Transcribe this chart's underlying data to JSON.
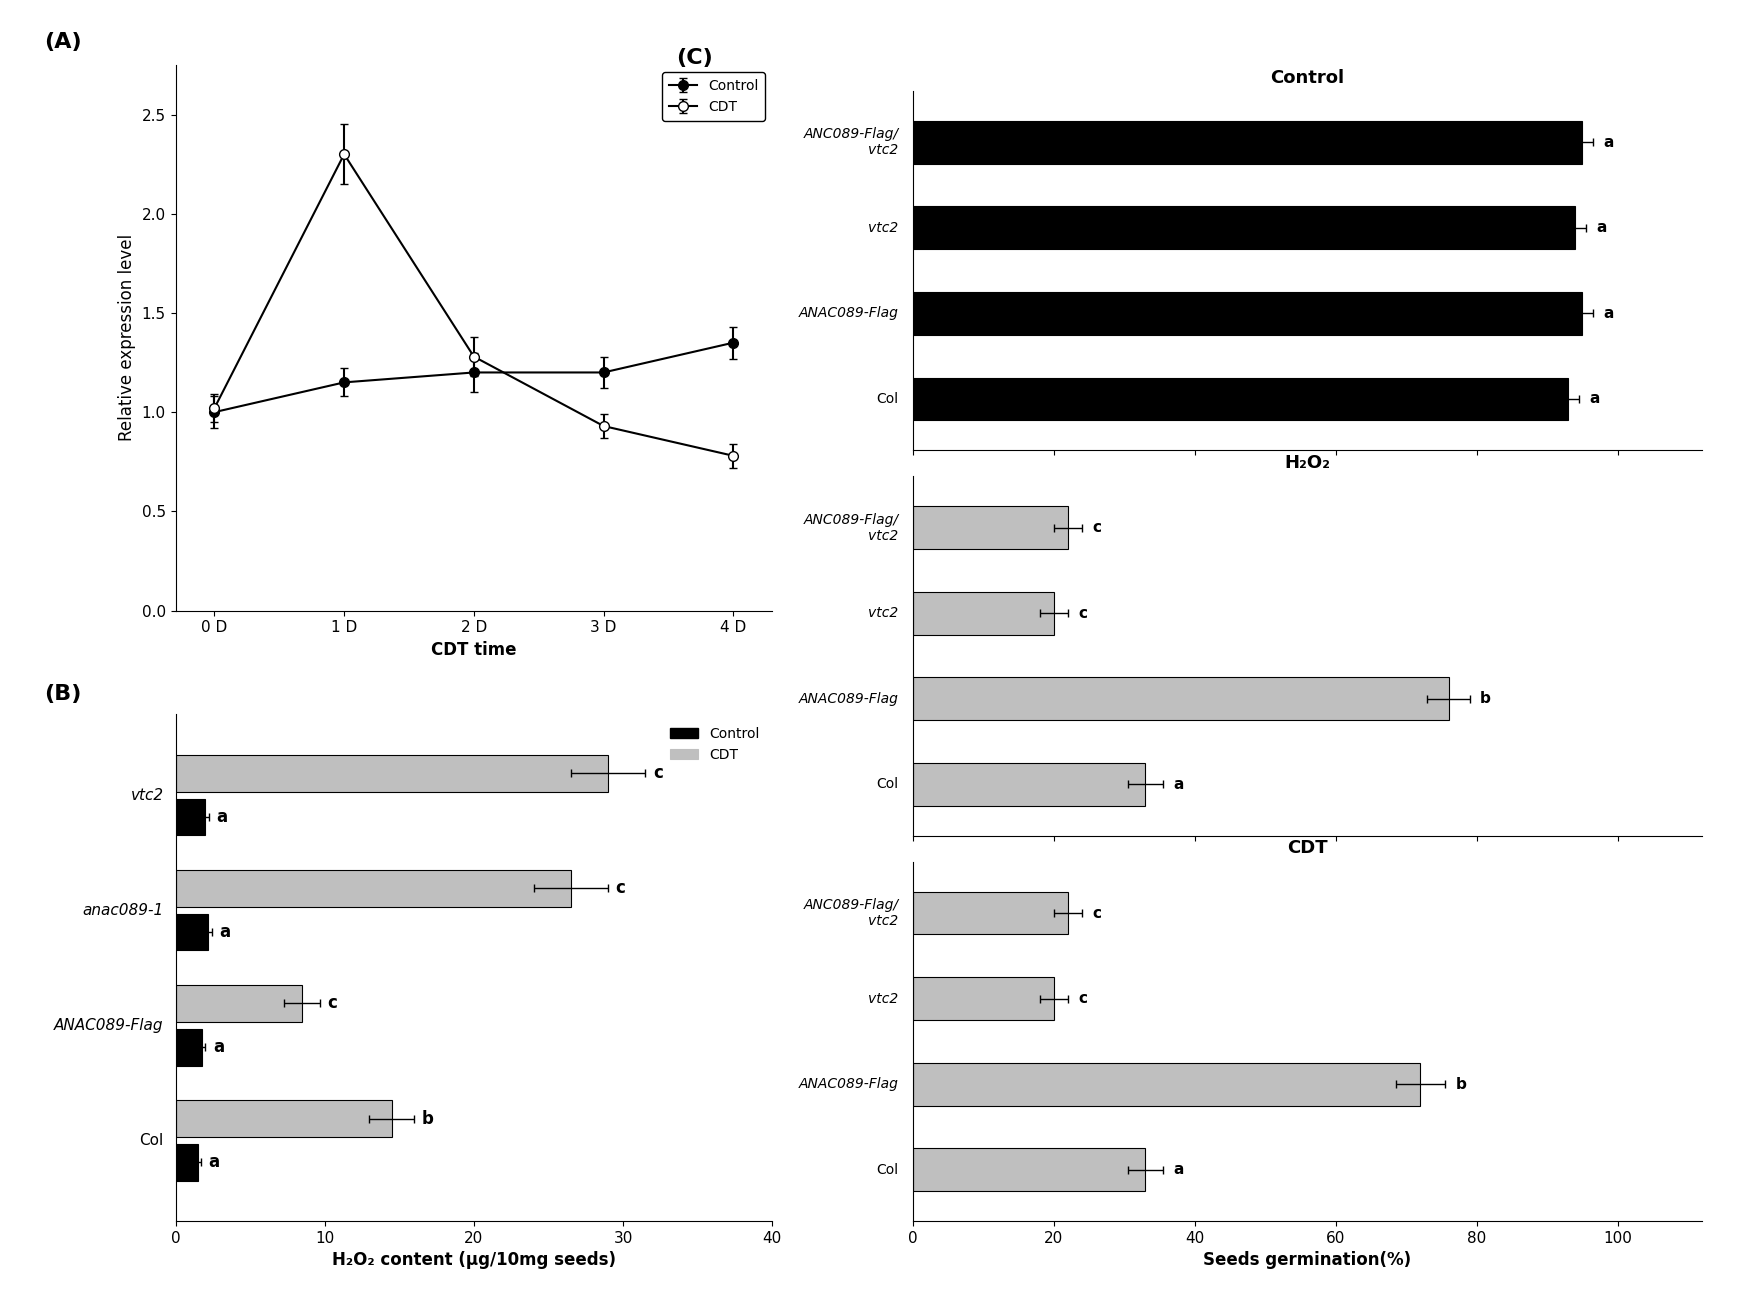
{
  "panel_A": {
    "x": [
      0,
      1,
      2,
      3,
      4
    ],
    "x_labels": [
      "0 D",
      "1 D",
      "2 D",
      "3 D",
      "4 D"
    ],
    "control_y": [
      1.0,
      1.15,
      1.2,
      1.2,
      1.35
    ],
    "control_err": [
      0.08,
      0.07,
      0.1,
      0.08,
      0.08
    ],
    "cdt_y": [
      1.02,
      2.3,
      1.28,
      0.93,
      0.78
    ],
    "cdt_err": [
      0.07,
      0.15,
      0.1,
      0.06,
      0.06
    ],
    "ylabel": "Relative expression level",
    "xlabel": "CDT time",
    "ylim": [
      0.0,
      2.75
    ],
    "yticks": [
      0.0,
      0.5,
      1.0,
      1.5,
      2.0,
      2.5
    ],
    "legend_control": "Control",
    "legend_cdt": "CDT"
  },
  "panel_B": {
    "categories": [
      "vtc2",
      "anac089-1",
      "ANAC089-Flag",
      "Col"
    ],
    "control_vals": [
      2.0,
      2.2,
      1.8,
      1.5
    ],
    "control_err": [
      0.25,
      0.25,
      0.2,
      0.2
    ],
    "cdt_vals": [
      29.0,
      26.5,
      8.5,
      14.5
    ],
    "cdt_err": [
      2.5,
      2.5,
      1.2,
      1.5
    ],
    "control_labels": [
      "a",
      "a",
      "a",
      "a"
    ],
    "cdt_labels": [
      "c",
      "c",
      "c",
      "b"
    ],
    "xlabel": "H₂O₂ content (μg/10mg seeds)",
    "xlim": [
      0,
      40
    ],
    "xticks": [
      0,
      10,
      20,
      30,
      40
    ]
  },
  "panel_C": {
    "categories": [
      "ANC089-Flag/\nvtc2",
      "vtc2",
      "ANAC089-Flag",
      "Col"
    ],
    "control_section": {
      "title": "Control",
      "vals": [
        95,
        94,
        95,
        93
      ],
      "err": [
        1.5,
        1.5,
        1.5,
        1.5
      ],
      "labels": [
        "a",
        "a",
        "a",
        "a"
      ],
      "color": "#000000"
    },
    "h2o2_section": {
      "title": "H₂O₂",
      "vals": [
        22,
        20,
        76,
        33
      ],
      "err": [
        2.0,
        2.0,
        3.0,
        2.5
      ],
      "labels": [
        "c",
        "c",
        "b",
        "a"
      ],
      "color": "#bfbfbf"
    },
    "cdt_section": {
      "title": "CDT",
      "vals": [
        22,
        20,
        72,
        33
      ],
      "err": [
        2.0,
        2.0,
        3.5,
        2.5
      ],
      "labels": [
        "c",
        "c",
        "b",
        "a"
      ],
      "color": "#bfbfbf"
    },
    "xlabel": "Seeds germination(%)",
    "xlim": [
      0,
      112
    ],
    "xticks": [
      0,
      20,
      40,
      60,
      80,
      100
    ]
  }
}
